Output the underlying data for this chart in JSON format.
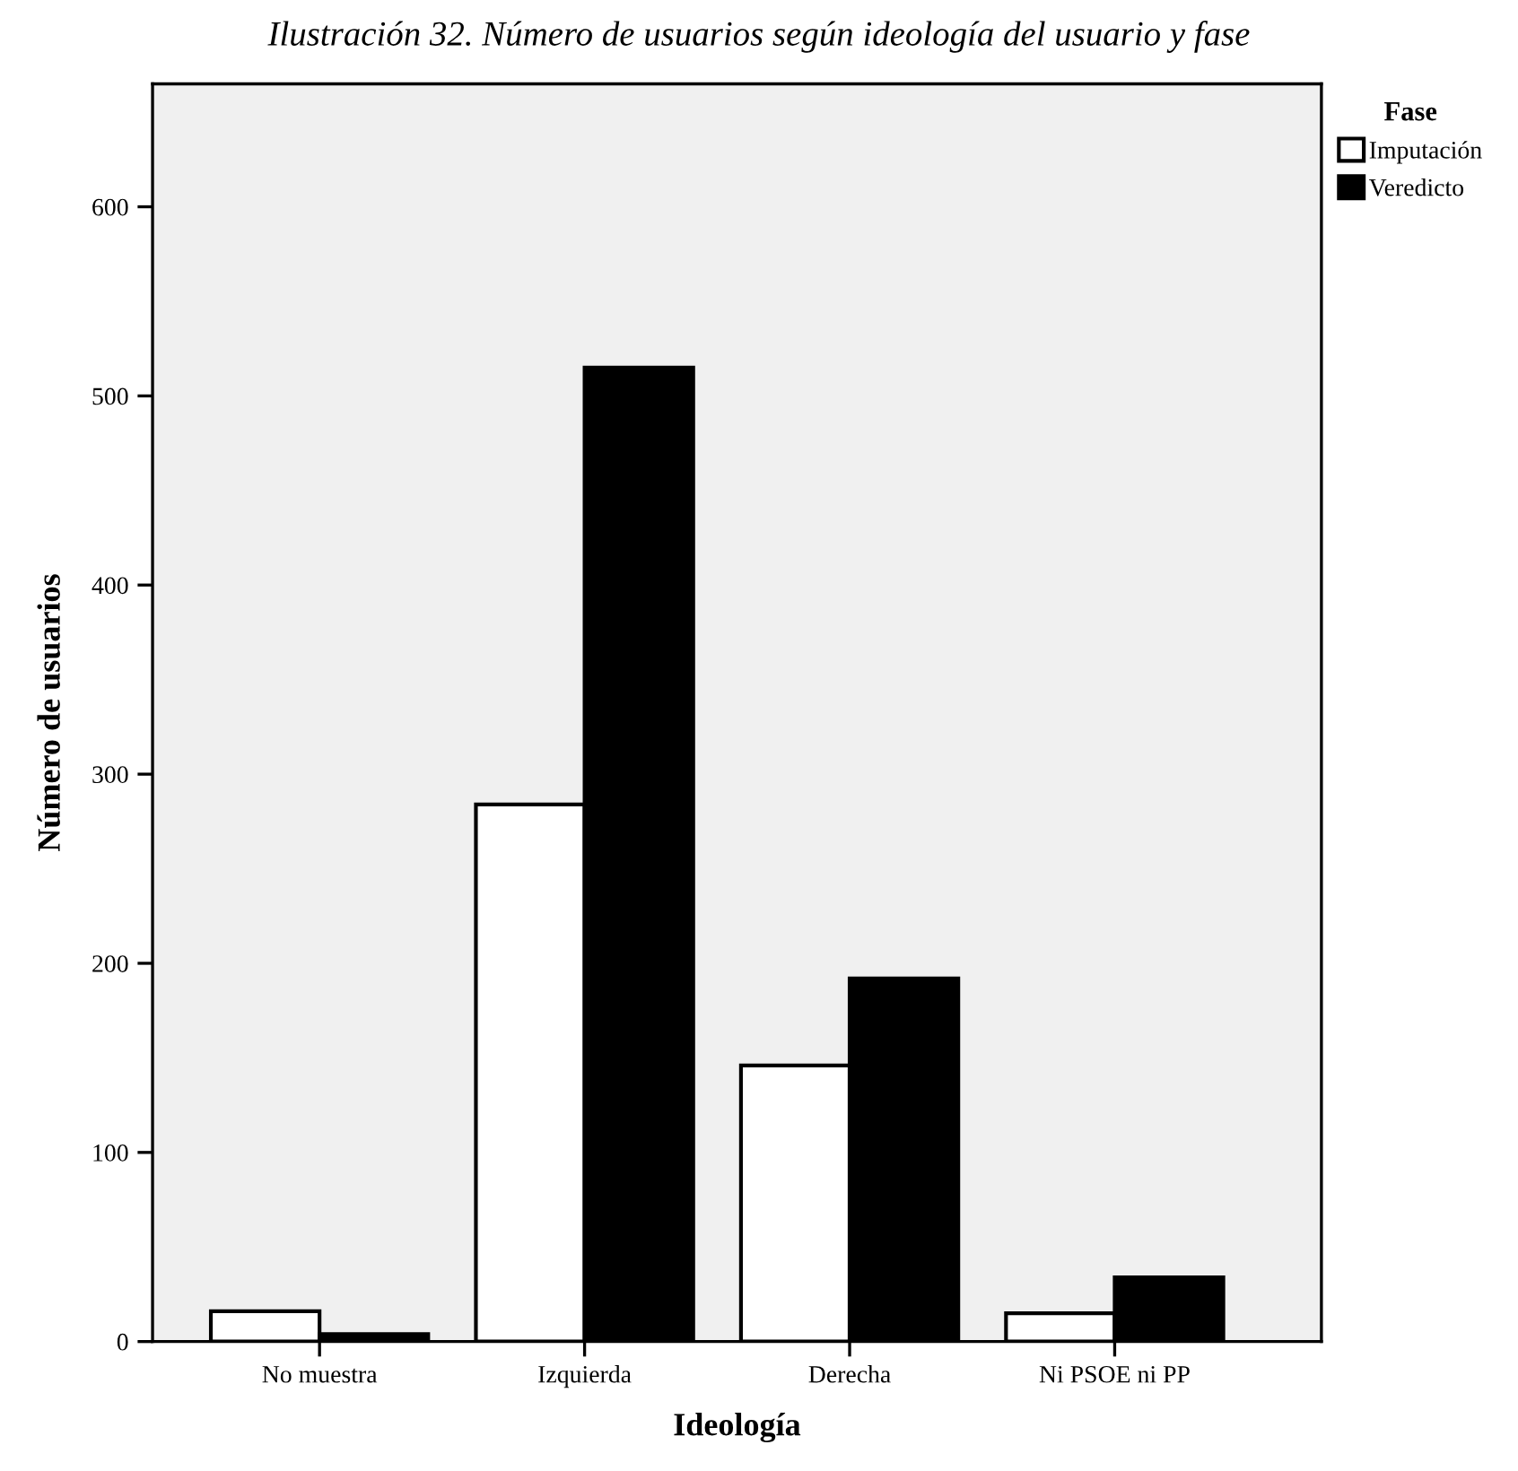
{
  "chart_data": {
    "type": "bar",
    "title": "Ilustración 32. Número de usuarios según ideología del usuario y fase",
    "xlabel": "Ideología",
    "ylabel": "Número de usuarios",
    "legend_title": "Fase",
    "categories": [
      "No muestra",
      "Izquierda",
      "Derecha",
      "Ni PSOE ni PP"
    ],
    "series": [
      {
        "name": "Imputación",
        "color": "#ffffff",
        "values": [
          16,
          284,
          146,
          15
        ]
      },
      {
        "name": "Veredicto",
        "color": "#000000",
        "values": [
          4,
          515,
          192,
          34
        ]
      }
    ],
    "ylim": [
      0,
      665
    ],
    "yticks": [
      0,
      100,
      200,
      300,
      400,
      500,
      600
    ],
    "grid": false,
    "legend": "top right"
  }
}
